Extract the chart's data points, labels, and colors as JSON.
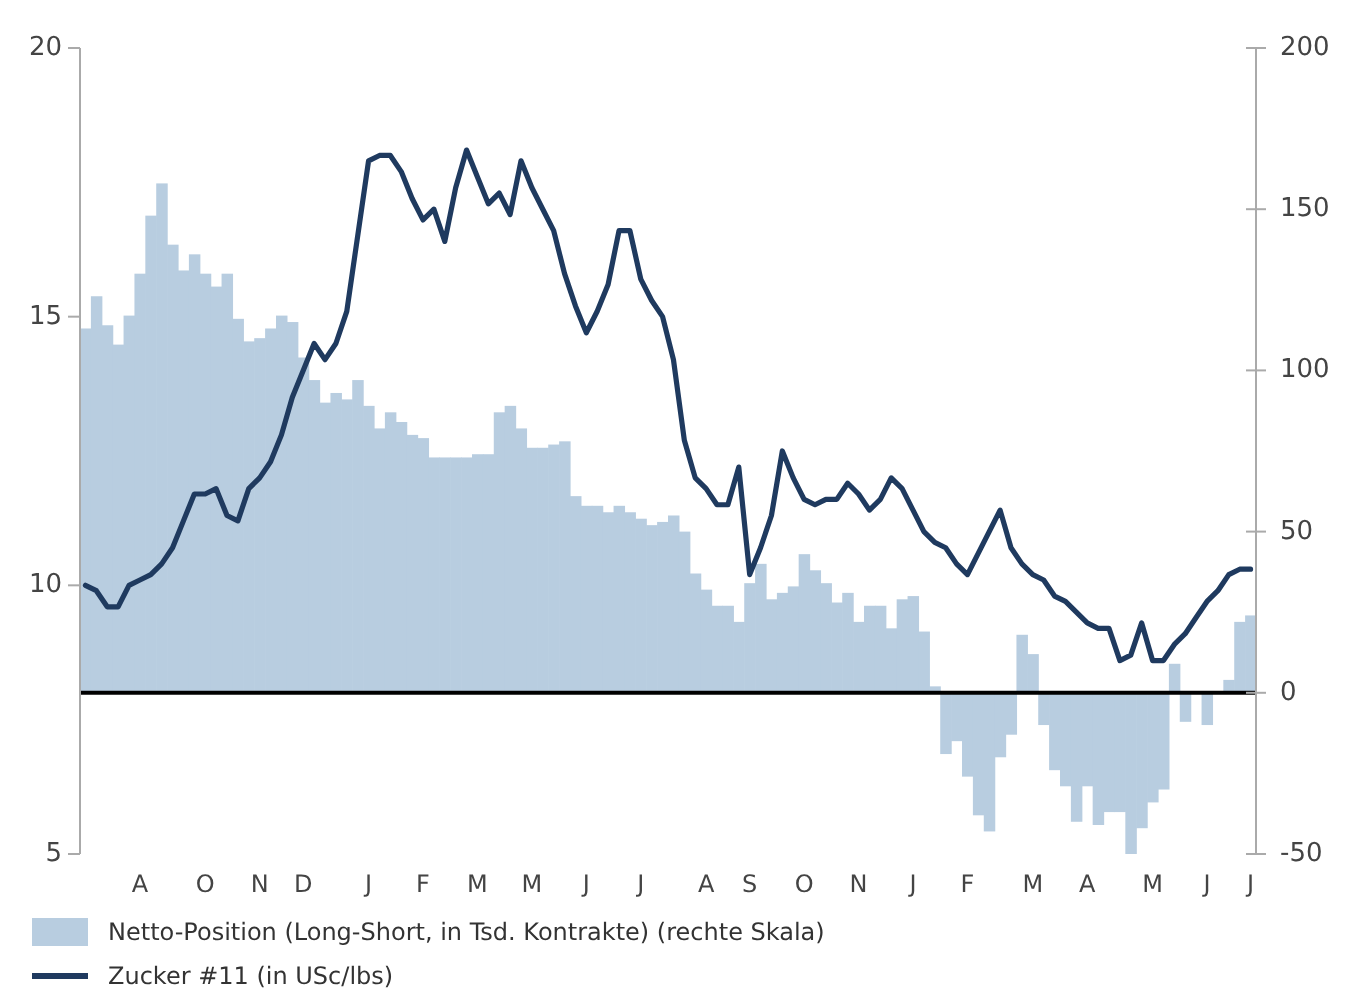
{
  "chart_data": {
    "type": "bar",
    "legend": "bottom",
    "categories": [
      null,
      null,
      null,
      null,
      null,
      "A",
      null,
      null,
      null,
      null,
      null,
      "O",
      null,
      null,
      null,
      null,
      "N",
      null,
      null,
      null,
      "D",
      null,
      null,
      null,
      null,
      null,
      "J",
      null,
      null,
      null,
      null,
      "F",
      null,
      null,
      null,
      null,
      "M",
      null,
      null,
      null,
      null,
      "M",
      null,
      null,
      null,
      null,
      "J",
      null,
      null,
      null,
      null,
      "J",
      null,
      null,
      null,
      null,
      null,
      "A",
      null,
      null,
      null,
      "S",
      null,
      null,
      null,
      null,
      "O",
      null,
      null,
      null,
      null,
      "N",
      null,
      null,
      null,
      null,
      "J",
      null,
      null,
      null,
      null,
      "F",
      null,
      null,
      null,
      null,
      null,
      "M",
      null,
      null,
      null,
      null,
      "A",
      null,
      null,
      null,
      null,
      null,
      "M",
      null,
      null,
      null,
      null,
      "J",
      null,
      null,
      null,
      "J"
    ],
    "ylim": [
      5,
      20
    ],
    "yticks": [
      5,
      10,
      15,
      20
    ],
    "y2lim": [
      -50,
      200
    ],
    "y2ticks": [
      -50,
      0,
      50,
      100,
      150,
      200
    ],
    "ref_lines": [
      {
        "axis": "y2",
        "value": 0,
        "color": "#000000"
      }
    ],
    "series": [
      {
        "name": "Netto-Position (Long-Short, in Tsd. Kontrakte) (rechte Skala)",
        "axis": "y2",
        "color": "#b8cde0",
        "values": [
          113,
          123,
          114,
          108,
          117,
          130,
          148,
          158,
          139,
          131,
          136,
          130,
          126,
          130,
          116,
          109,
          110,
          113,
          117,
          115,
          104,
          97,
          90,
          93,
          91,
          97,
          89,
          82,
          87,
          84,
          80,
          79,
          73,
          73,
          73,
          73,
          74,
          74,
          87,
          89,
          82,
          76,
          76,
          77,
          78,
          61,
          58,
          58,
          56,
          58,
          56,
          54,
          52,
          53,
          55,
          50,
          37,
          32,
          27,
          27,
          22,
          34,
          40,
          29,
          31,
          33,
          43,
          38,
          34,
          28,
          31,
          22,
          27,
          27,
          20,
          29,
          30,
          19,
          2,
          -19,
          -15,
          -26,
          -38,
          -43,
          -20,
          -13,
          18,
          12,
          -10,
          -24,
          -29,
          -40,
          -29,
          -41,
          -37,
          -37,
          -50,
          -42,
          -34,
          -30,
          9,
          -9,
          null,
          -10,
          0,
          4,
          22,
          24
        ]
      },
      {
        "name": "Zucker #11 (in USc/lbs)",
        "type": "line",
        "color": "#1f3a5f",
        "values": [
          10.0,
          9.9,
          9.6,
          9.6,
          10.0,
          10.1,
          10.2,
          10.4,
          10.7,
          11.2,
          11.7,
          11.7,
          11.8,
          11.3,
          11.2,
          11.8,
          12.0,
          12.3,
          12.8,
          13.5,
          14.0,
          14.5,
          14.2,
          14.5,
          15.1,
          16.5,
          17.9,
          18.0,
          18.0,
          17.7,
          17.2,
          16.8,
          17.0,
          16.4,
          17.4,
          18.1,
          17.6,
          17.1,
          17.3,
          16.9,
          17.9,
          17.4,
          17.0,
          16.6,
          15.8,
          15.2,
          14.7,
          15.1,
          15.6,
          16.6,
          16.6,
          15.7,
          15.3,
          15.0,
          14.2,
          12.7,
          12.0,
          11.8,
          11.5,
          11.5,
          12.2,
          10.2,
          10.7,
          11.3,
          12.5,
          12.0,
          11.6,
          11.5,
          11.6,
          11.6,
          11.9,
          11.7,
          11.4,
          11.6,
          12.0,
          11.8,
          11.4,
          11.0,
          10.8,
          10.7,
          10.4,
          10.2,
          10.6,
          11.0,
          11.4,
          10.7,
          10.4,
          10.2,
          10.1,
          9.8,
          9.7,
          9.5,
          9.3,
          9.2,
          9.2,
          8.6,
          8.7,
          9.3,
          8.6,
          8.6,
          8.9,
          9.1,
          9.4,
          9.7,
          9.9,
          10.2,
          10.3,
          10.3
        ]
      }
    ]
  }
}
